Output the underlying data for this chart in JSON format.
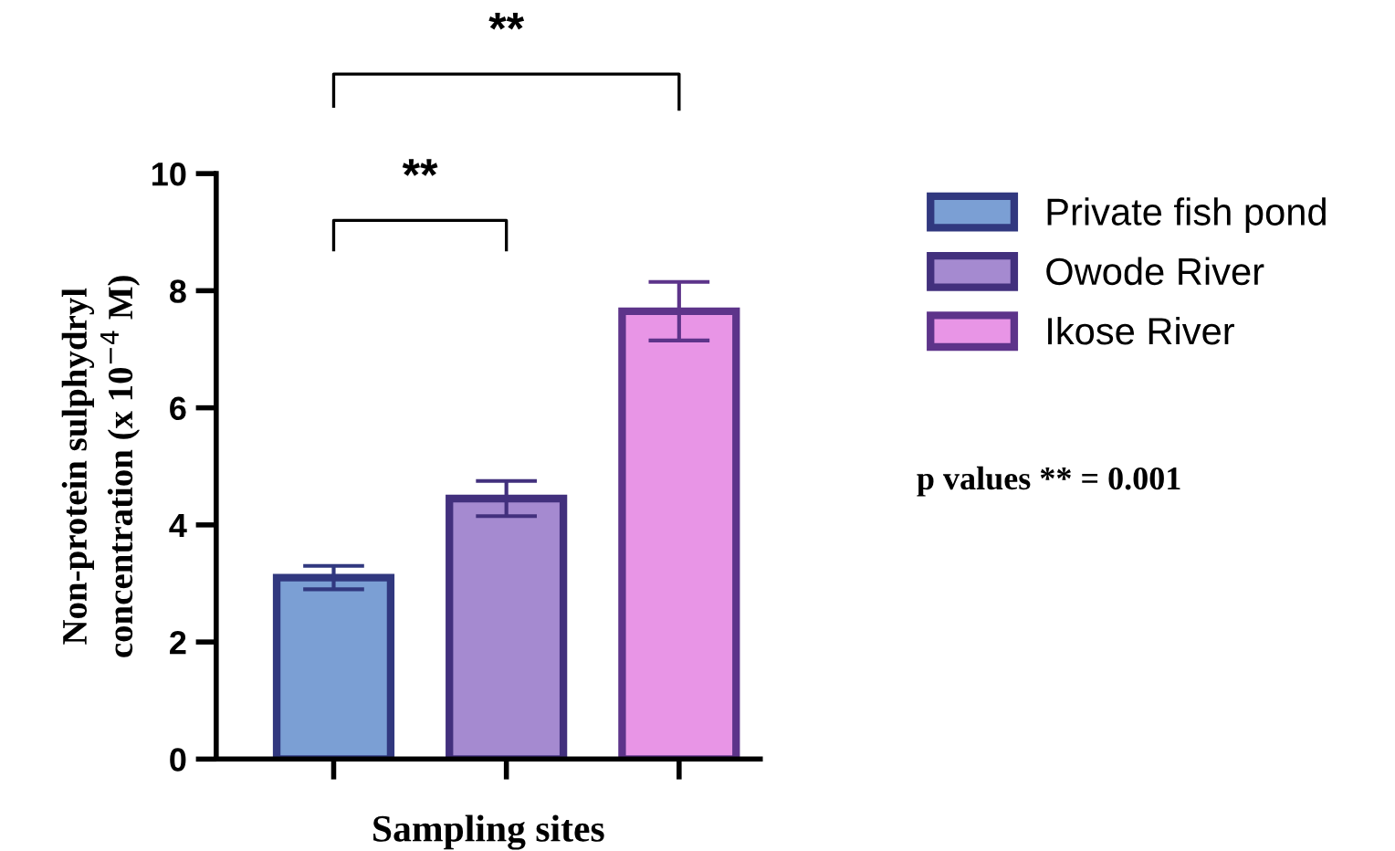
{
  "chart_data": {
    "type": "bar",
    "xlabel": "Sampling sites",
    "ylabel": "Non-protein sulphydryl\nconcentration (x 10$^{−4}$ M)",
    "categories": [
      null,
      null,
      null
    ],
    "series": [
      {
        "name": "Private fish pond",
        "color": "#7b9fd4",
        "values": [
          3.1,
          null,
          null
        ],
        "errors": [
          0.2,
          null,
          null
        ]
      },
      {
        "name": "Owode River",
        "color": "#a58ad0",
        "values": [
          null,
          4.45,
          null
        ],
        "errors": [
          null,
          0.3,
          null
        ]
      },
      {
        "name": "Ikose River",
        "color": "#e895e6",
        "values": [
          null,
          null,
          7.65
        ],
        "errors": [
          null,
          null,
          0.5
        ]
      }
    ],
    "ylim": [
      0,
      10
    ],
    "yticks": [
      0,
      2,
      4,
      6,
      8,
      10
    ],
    "tick_labels": "y",
    "grid": false,
    "legend": "right",
    "annotations": [
      "**",
      "**",
      "p values ** = 0.001"
    ]
  }
}
